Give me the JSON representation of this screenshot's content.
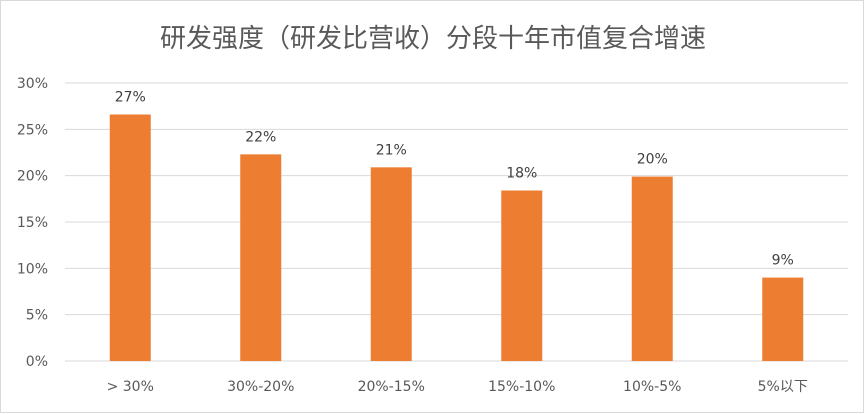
{
  "chart_data": {
    "type": "bar",
    "title": "研发强度（研发比营收）分段十年市值复合增速",
    "categories": [
      "> 30%",
      "30%-20%",
      "20%-15%",
      "15%-10%",
      "10%-5%",
      "5%以下"
    ],
    "values": [
      26.6,
      22.3,
      20.9,
      18.4,
      19.9,
      9.0
    ],
    "data_labels": [
      "27%",
      "22%",
      "21%",
      "18%",
      "20%",
      "9%"
    ],
    "ylim": [
      0,
      30
    ],
    "yticks": [
      0,
      5,
      10,
      15,
      20,
      25,
      30
    ],
    "ytick_labels": [
      "0%",
      "5%",
      "10%",
      "15%",
      "20%",
      "25%",
      "30%"
    ],
    "xlabel": "",
    "ylabel": "",
    "grid": true,
    "legend": "none",
    "bar_color": "#ED7D31",
    "grid_color": "#d9d9d9"
  }
}
